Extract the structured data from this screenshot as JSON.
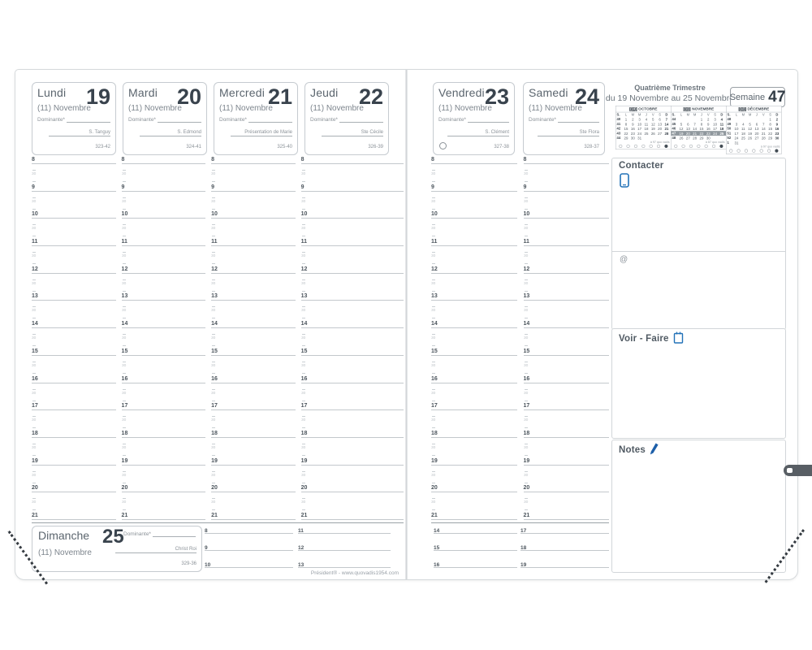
{
  "page": {
    "footer": "Président® - www.quovadis1954.com"
  },
  "week_header": {
    "trimester": "Quatrième Trimestre",
    "range": "du 19 Novembre au 25 Novembre",
    "week_label": "Semaine",
    "week_number": "47"
  },
  "half_hour_label": "30",
  "hours": [
    "8",
    "9",
    "10",
    "11",
    "12",
    "13",
    "14",
    "15",
    "16",
    "17",
    "18",
    "19",
    "20",
    "21"
  ],
  "days": [
    {
      "name": "Lundi",
      "number": "19",
      "month": "(11) Novembre",
      "dominante_label": "Dominante*",
      "saint": "S. Tanguy",
      "day_count": "323-42"
    },
    {
      "name": "Mardi",
      "number": "20",
      "month": "(11) Novembre",
      "dominante_label": "Dominante*",
      "saint": "S. Edmond",
      "day_count": "324-41"
    },
    {
      "name": "Mercredi",
      "number": "21",
      "month": "(11) Novembre",
      "dominante_label": "Dominante*",
      "saint": "Présentation de Marie",
      "day_count": "325-40"
    },
    {
      "name": "Jeudi",
      "number": "22",
      "month": "(11) Novembre",
      "dominante_label": "Dominante*",
      "saint": "Ste Cécile",
      "day_count": "326-39"
    },
    {
      "name": "Vendredi",
      "number": "23",
      "month": "(11) Novembre",
      "dominante_label": "Dominante*",
      "saint": "S. Clément",
      "day_count": "327-38",
      "moon_phase": "full-moon-circle"
    },
    {
      "name": "Samedi",
      "number": "24",
      "month": "(11) Novembre",
      "dominante_label": "Dominante*",
      "saint": "Ste Flora",
      "day_count": "328-37"
    }
  ],
  "sunday": {
    "name": "Dimanche",
    "number": "25",
    "month": "(11) Novembre",
    "dominante_label": "Dominante*",
    "saint": "Christ Roi",
    "day_count": "329-36",
    "hour_groups": [
      [
        "8",
        "9",
        "10"
      ],
      [
        "11",
        "12",
        "13"
      ],
      [
        "14",
        "15",
        "16"
      ],
      [
        "17",
        "18",
        "19"
      ]
    ]
  },
  "calendars": [
    {
      "title_num": "(10)",
      "title": "OCTOBRE",
      "week_col": "S.",
      "dow": [
        "L",
        "M",
        "M",
        "J",
        "V",
        "S",
        "D"
      ],
      "rows": [
        [
          "40",
          "1",
          "2",
          "3",
          "4",
          "5",
          "6",
          "7"
        ],
        [
          "41",
          "8",
          "9",
          "10",
          "11",
          "12",
          "13",
          "14"
        ],
        [
          "42",
          "15",
          "16",
          "17",
          "18",
          "19",
          "20",
          "21"
        ],
        [
          "43",
          "22",
          "23",
          "24",
          "25",
          "26",
          "27",
          "28"
        ],
        [
          "44",
          "29",
          "30",
          "31",
          "",
          "",
          "",
          ""
        ]
      ],
      "highlight_row": -1,
      "footnote": "à 97 quo vadis",
      "moons": [
        "empty",
        "empty",
        "empty",
        "empty",
        "empty",
        "empty",
        "full"
      ]
    },
    {
      "title_num": "(11)",
      "title": "NOVEMBRE",
      "week_col": "S.",
      "dow": [
        "L",
        "M",
        "M",
        "J",
        "V",
        "S",
        "D"
      ],
      "rows": [
        [
          "44",
          "",
          "",
          "",
          "1",
          "2",
          "3",
          "4"
        ],
        [
          "45",
          "5",
          "6",
          "7",
          "8",
          "9",
          "10",
          "11"
        ],
        [
          "46",
          "12",
          "13",
          "14",
          "15",
          "16",
          "17",
          "18"
        ],
        [
          "47",
          "19",
          "20",
          "21",
          "22",
          "23",
          "24",
          "25"
        ],
        [
          "48",
          "26",
          "27",
          "28",
          "29",
          "30",
          "",
          ""
        ]
      ],
      "highlight_row": 3,
      "footnote": "à 87 quo vadis",
      "moons": [
        "empty",
        "empty",
        "empty",
        "empty",
        "empty",
        "empty",
        "full"
      ]
    },
    {
      "title_num": "(12)",
      "title": "DÉCEMBRE",
      "week_col": "S.",
      "dow": [
        "L",
        "M",
        "M",
        "J",
        "V",
        "S",
        "D"
      ],
      "rows": [
        [
          "48",
          "",
          "",
          "",
          "",
          "",
          "1",
          "2"
        ],
        [
          "49",
          "3",
          "4",
          "5",
          "6",
          "7",
          "8",
          "9"
        ],
        [
          "50",
          "10",
          "11",
          "12",
          "13",
          "14",
          "15",
          "16"
        ],
        [
          "51",
          "17",
          "18",
          "19",
          "20",
          "21",
          "22",
          "23"
        ],
        [
          "52",
          "24",
          "25",
          "26",
          "27",
          "28",
          "29",
          "30"
        ],
        [
          "1",
          "31",
          "",
          "",
          "",
          "",
          "",
          ""
        ]
      ],
      "highlight_row": -1,
      "footnote": "à 97 quo vadis",
      "moons": [
        "empty",
        "empty",
        "empty",
        "empty",
        "empty",
        "empty",
        "full"
      ]
    }
  ],
  "sidebar": {
    "contacter_label": "Contacter",
    "at_symbol": "@",
    "voir_faire_label": "Voir - Faire",
    "notes_label": "Notes"
  },
  "icons": {
    "contacter": "smartphone",
    "voir_faire": "notepad",
    "notes": "pen",
    "vendredi_symbol": "moon-circle"
  }
}
